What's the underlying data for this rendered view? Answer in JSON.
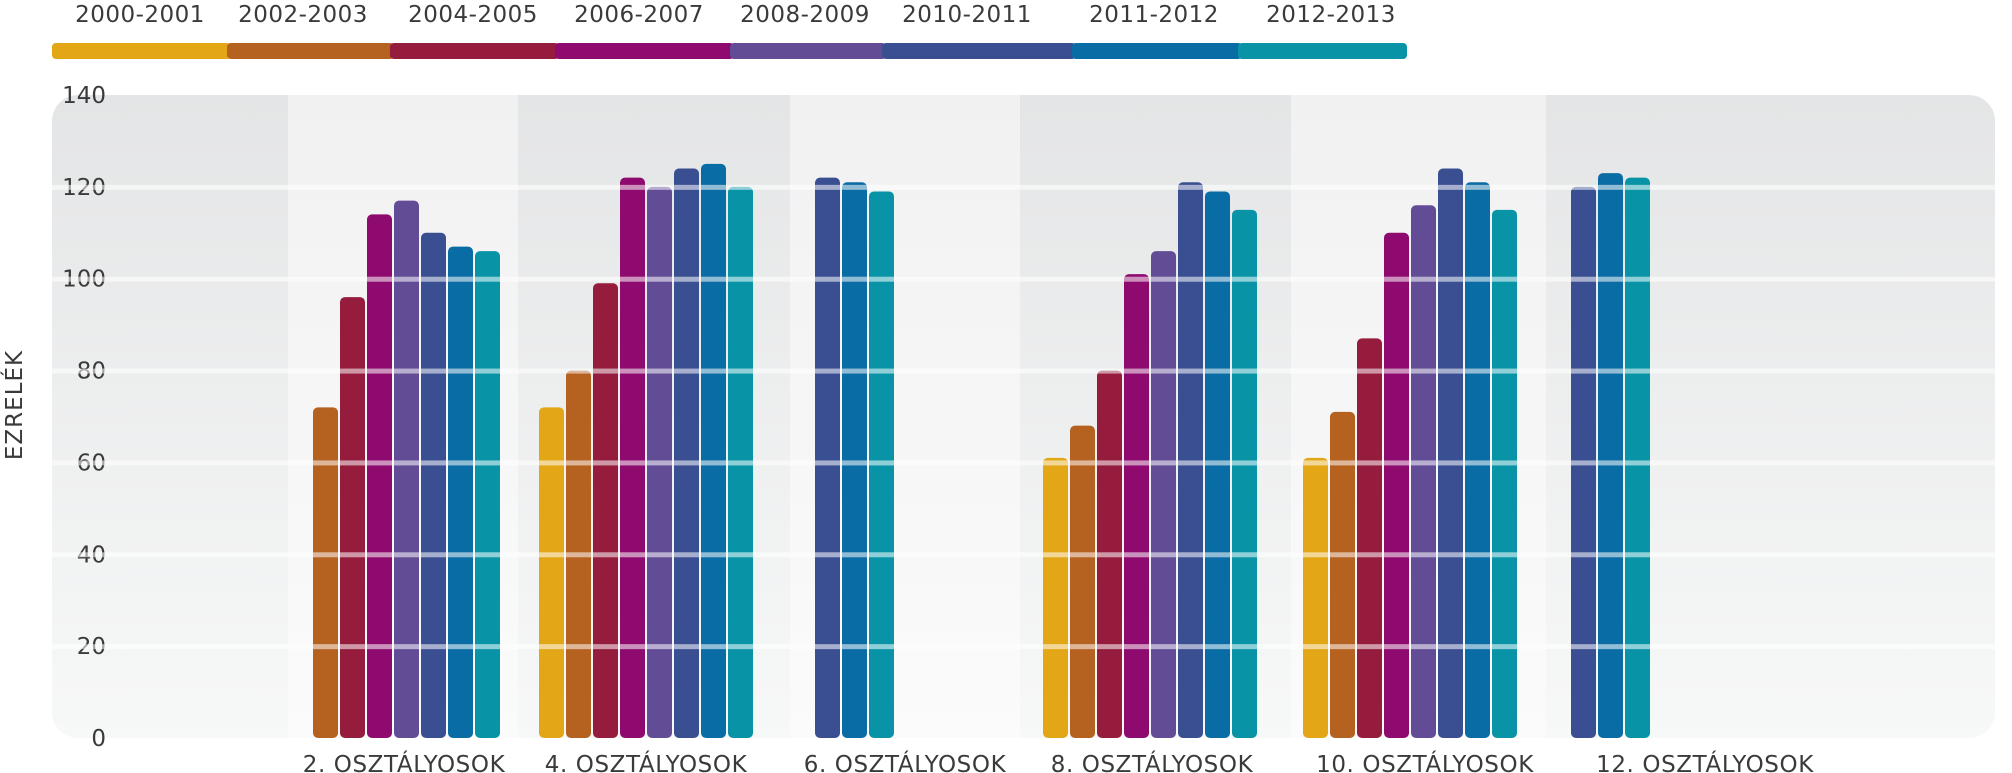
{
  "chart_data": {
    "type": "bar",
    "title": "",
    "xlabel": "",
    "ylabel": "EZRELÉK",
    "ylim": [
      0,
      140
    ],
    "yticks": [
      0,
      20,
      40,
      60,
      80,
      100,
      120,
      140
    ],
    "grid": true,
    "legend_position": "top",
    "categories": [
      "2. OSZTÁLYOSOK",
      "4. OSZTÁLYOSOK",
      "6. OSZTÁLYOSOK",
      "8. OSZTÁLYOSOK",
      "10. OSZTÁLYOSOK",
      "12. OSZTÁLYOSOK"
    ],
    "series": [
      {
        "name": "2000-2001",
        "color": "#E3A617",
        "values": [
          null,
          72,
          null,
          61,
          61,
          null
        ]
      },
      {
        "name": "2002-2003",
        "color": "#B5611F",
        "values": [
          72,
          80,
          null,
          68,
          71,
          null
        ]
      },
      {
        "name": "2004-2005",
        "color": "#951C3C",
        "values": [
          96,
          99,
          null,
          80,
          87,
          null
        ]
      },
      {
        "name": "2006-2007",
        "color": "#8E0A6E",
        "values": [
          114,
          122,
          null,
          101,
          110,
          null
        ]
      },
      {
        "name": "2008-2009",
        "color": "#624C96",
        "values": [
          117,
          120,
          null,
          106,
          116,
          null
        ]
      },
      {
        "name": "2010-2011",
        "color": "#3A4F91",
        "values": [
          110,
          124,
          122,
          121,
          124,
          120
        ]
      },
      {
        "name": "2011-2012",
        "color": "#0A6CA4",
        "values": [
          107,
          125,
          121,
          119,
          121,
          123
        ]
      },
      {
        "name": "2012-2013",
        "color": "#0894A6",
        "values": [
          106,
          120,
          119,
          115,
          115,
          122
        ]
      }
    ]
  }
}
